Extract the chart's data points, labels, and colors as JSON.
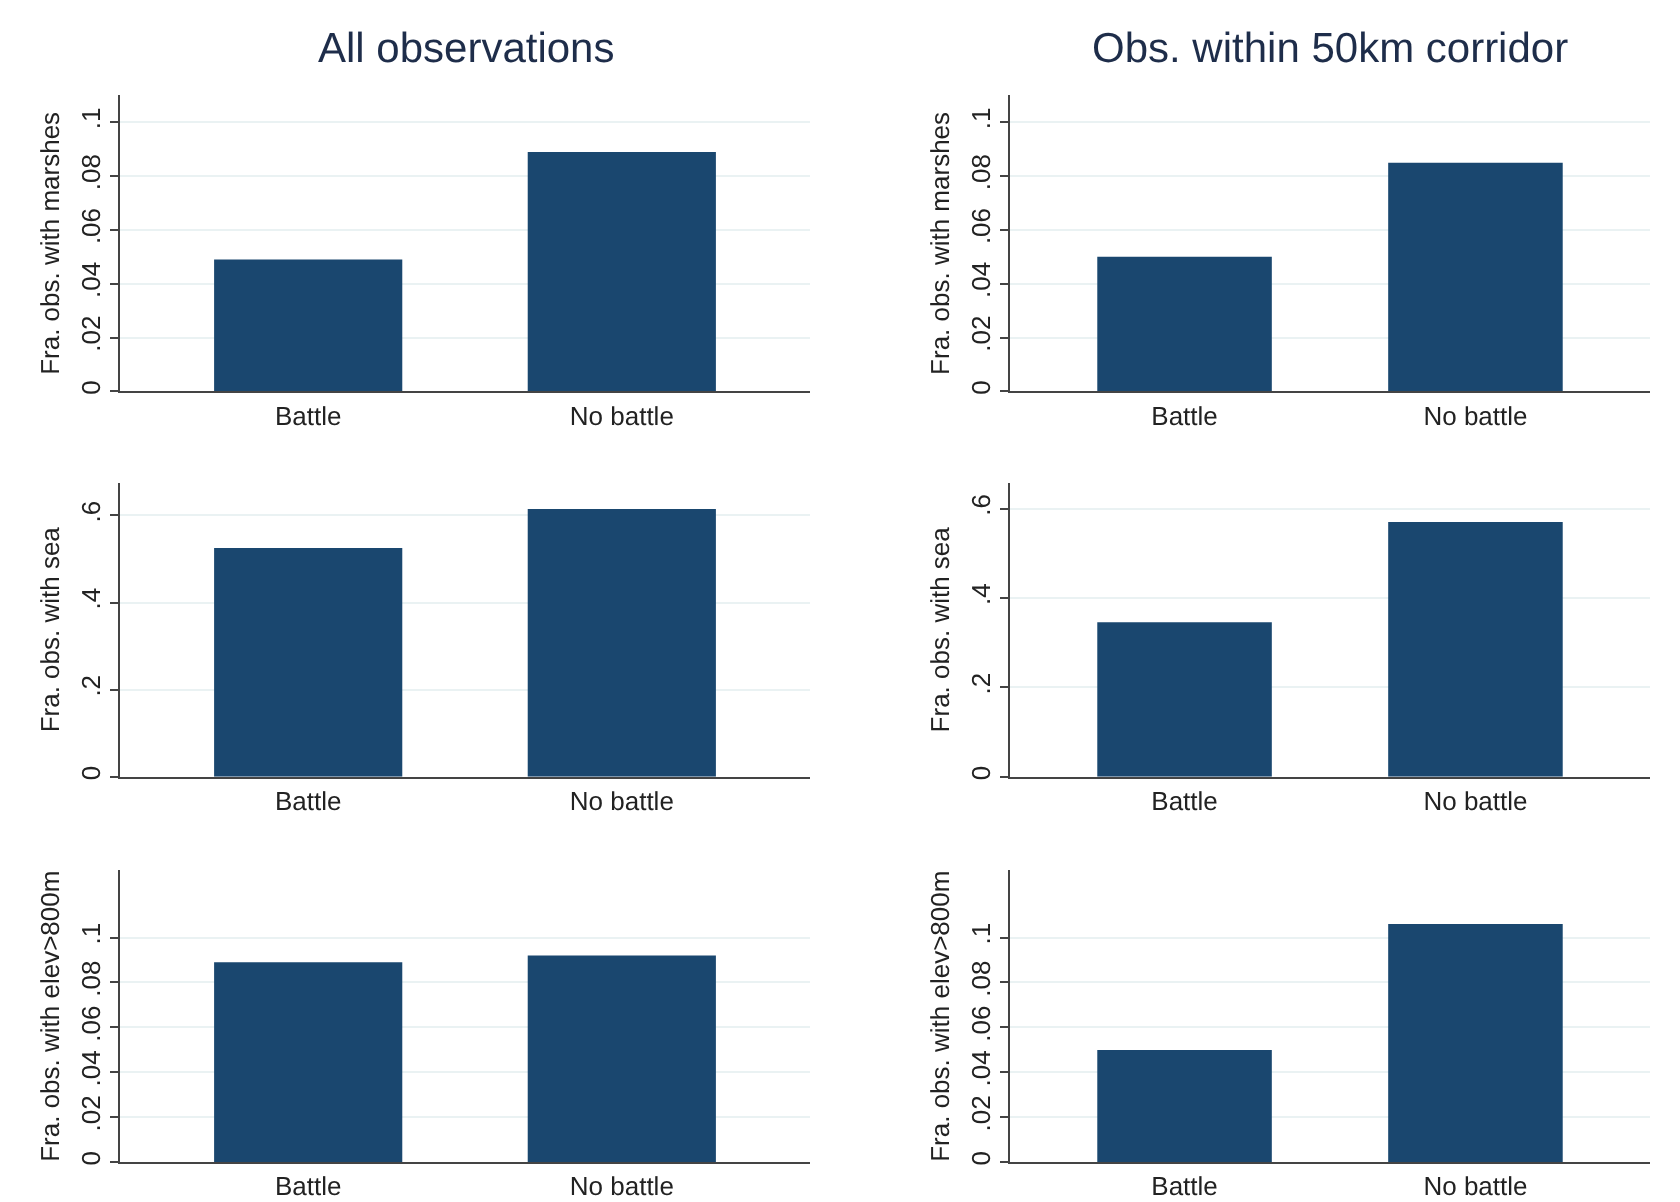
{
  "chart_data": [
    {
      "type": "bar",
      "title": "All observations",
      "ylabel": "Fra. obs. with marshes",
      "categories": [
        "Battle",
        "No battle"
      ],
      "values": [
        0.049,
        0.089
      ],
      "color": "#1a476f",
      "ylim": [
        0,
        0.11
      ],
      "yticks": [
        {
          "value": 0,
          "label": "0"
        },
        {
          "value": 0.02,
          "label": ".02"
        },
        {
          "value": 0.04,
          "label": ".04"
        },
        {
          "value": 0.06,
          "label": ".06"
        },
        {
          "value": 0.08,
          "label": ".08"
        },
        {
          "value": 0.1,
          "label": ".1"
        }
      ],
      "grid": "y"
    },
    {
      "type": "bar",
      "title": "Obs. within 50km corridor",
      "ylabel": "Fra. obs. with marshes",
      "categories": [
        "Battle",
        "No battle"
      ],
      "values": [
        0.05,
        0.085
      ],
      "color": "#1a476f",
      "ylim": [
        0,
        0.11
      ],
      "yticks": [
        {
          "value": 0,
          "label": "0"
        },
        {
          "value": 0.02,
          "label": ".02"
        },
        {
          "value": 0.04,
          "label": ".04"
        },
        {
          "value": 0.06,
          "label": ".06"
        },
        {
          "value": 0.08,
          "label": ".08"
        },
        {
          "value": 0.1,
          "label": ".1"
        }
      ],
      "grid": "y"
    },
    {
      "type": "bar",
      "ylabel": "Fra. obs. with sea",
      "categories": [
        "Battle",
        "No battle"
      ],
      "values": [
        0.525,
        0.615
      ],
      "color": "#1a476f",
      "ylim": [
        0,
        0.675
      ],
      "yticks": [
        {
          "value": 0,
          "label": "0"
        },
        {
          "value": 0.2,
          "label": ".2"
        },
        {
          "value": 0.4,
          "label": ".4"
        },
        {
          "value": 0.6,
          "label": ".6"
        }
      ],
      "grid": "y"
    },
    {
      "type": "bar",
      "ylabel": "Fra. obs. with sea",
      "categories": [
        "Battle",
        "No battle"
      ],
      "values": [
        0.346,
        0.57
      ],
      "color": "#1a476f",
      "ylim": [
        0,
        0.658
      ],
      "yticks": [
        {
          "value": 0,
          "label": "0"
        },
        {
          "value": 0.2,
          "label": ".2"
        },
        {
          "value": 0.4,
          "label": ".4"
        },
        {
          "value": 0.6,
          "label": ".6"
        }
      ],
      "grid": "y"
    },
    {
      "type": "bar",
      "ylabel": "Fra. obs. with elev>800m",
      "categories": [
        "Battle",
        "No battle"
      ],
      "values": [
        0.089,
        0.092
      ],
      "color": "#1a476f",
      "ylim": [
        0,
        0.13
      ],
      "yticks": [
        {
          "value": 0,
          "label": "0"
        },
        {
          "value": 0.02,
          "label": ".02"
        },
        {
          "value": 0.04,
          "label": ".04"
        },
        {
          "value": 0.06,
          "label": ".06"
        },
        {
          "value": 0.08,
          "label": ".08"
        },
        {
          "value": 0.1,
          "label": ".1"
        }
      ],
      "grid": "y"
    },
    {
      "type": "bar",
      "ylabel": "Fra. obs. with elev>800m",
      "categories": [
        "Battle",
        "No battle"
      ],
      "values": [
        0.05,
        0.106
      ],
      "color": "#1a476f",
      "ylim": [
        0,
        0.13
      ],
      "yticks": [
        {
          "value": 0,
          "label": "0"
        },
        {
          "value": 0.02,
          "label": ".02"
        },
        {
          "value": 0.04,
          "label": ".04"
        },
        {
          "value": 0.06,
          "label": ".06"
        },
        {
          "value": 0.08,
          "label": ".08"
        },
        {
          "value": 0.1,
          "label": ".1"
        }
      ],
      "grid": "y"
    }
  ]
}
